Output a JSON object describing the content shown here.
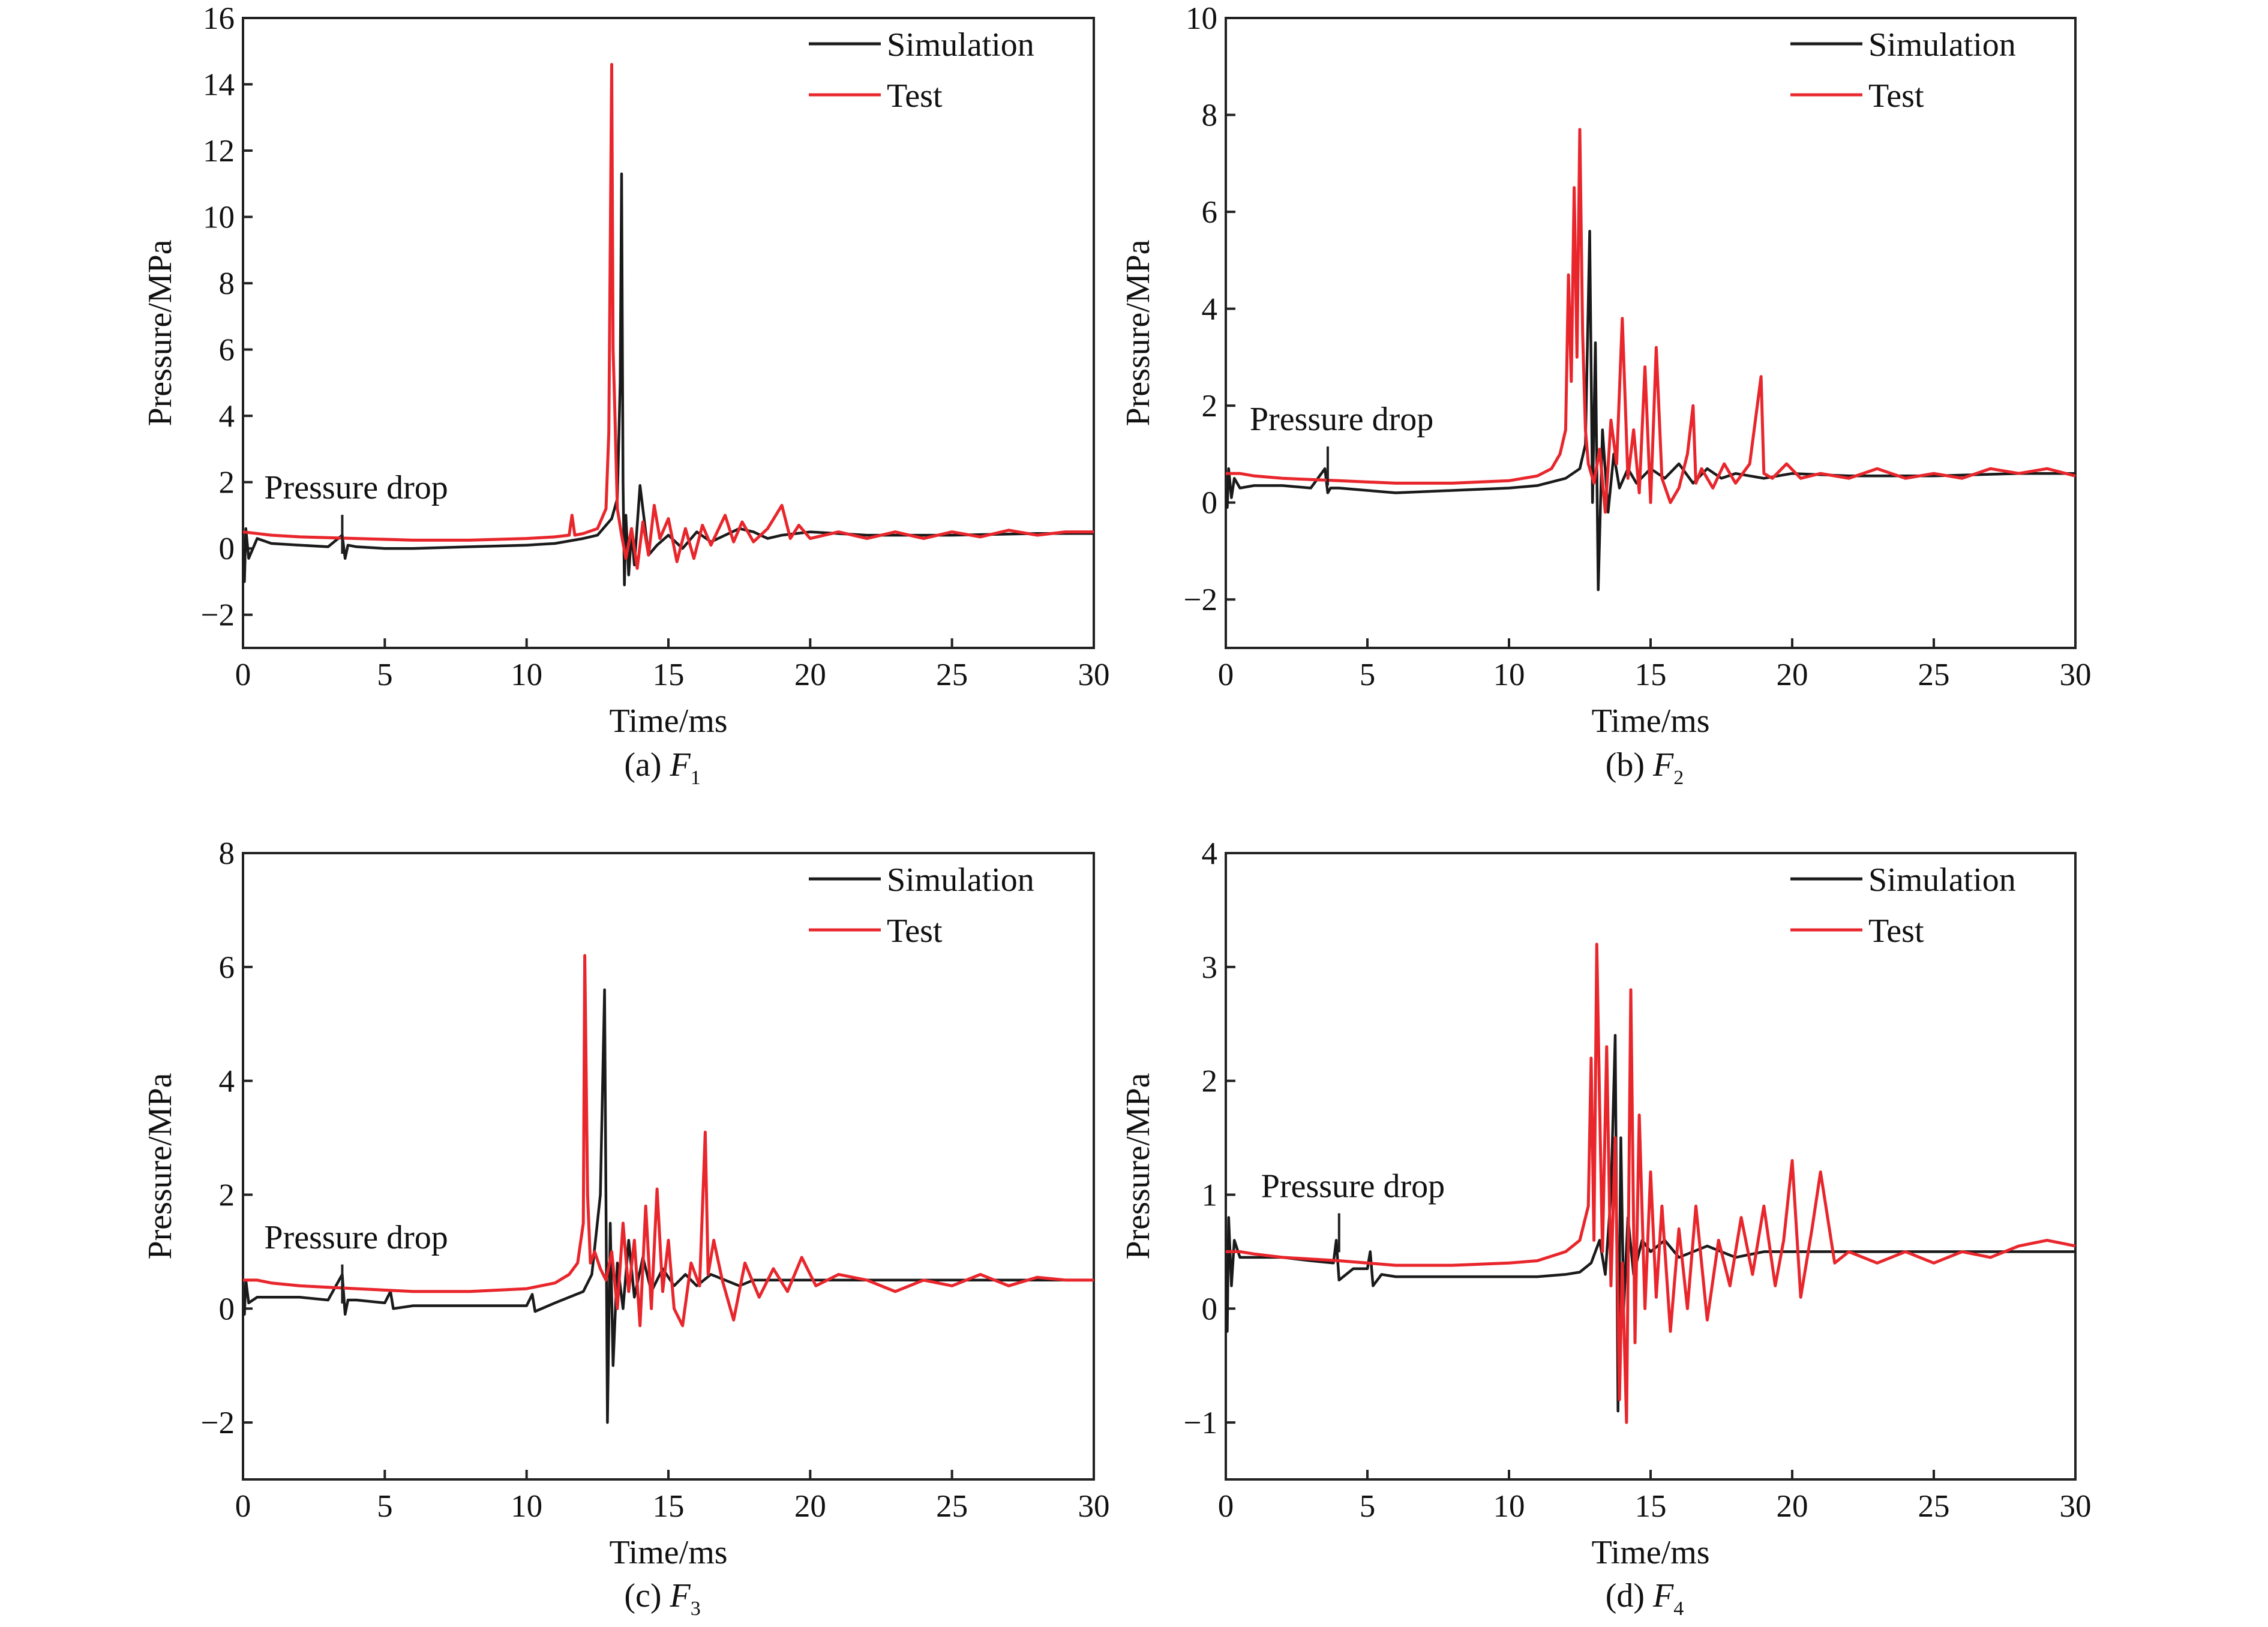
{
  "colors": {
    "simulation": "#1a1a1a",
    "test": "#e8262c",
    "test_highlight": "#f06aa8"
  },
  "chart_data": [
    {
      "type": "line",
      "caption_prefix": "(a) ",
      "caption_var": "F",
      "caption_sub": "1",
      "xlabel": "Time/ms",
      "ylabel": "Pressure/MPa",
      "xlim": [
        0,
        30
      ],
      "ylim": [
        -3,
        16
      ],
      "xticks": [
        0,
        5,
        10,
        15,
        20,
        25,
        30
      ],
      "yticks": [
        -2,
        0,
        2,
        4,
        6,
        8,
        10,
        12,
        14,
        16
      ],
      "annotation": {
        "text": "Pressure drop",
        "x": 3.5,
        "y": 0.2
      },
      "legend": [
        "Simulation",
        "Test"
      ],
      "series": [
        {
          "name": "Simulation",
          "x": [
            0,
            0.05,
            0.1,
            0.2,
            0.5,
            1,
            2,
            3,
            3.5,
            3.6,
            3.7,
            4,
            5,
            6,
            8,
            10,
            11,
            12,
            12.5,
            13,
            13.2,
            13.3,
            13.35,
            13.4,
            13.45,
            13.5,
            13.6,
            13.7,
            13.8,
            14,
            14.3,
            14.6,
            15,
            15.5,
            16,
            16.5,
            17,
            17.5,
            18,
            18.5,
            19,
            20,
            22,
            25,
            28,
            30
          ],
          "y": [
            0,
            -1,
            0.6,
            -0.3,
            0.3,
            0.15,
            0.1,
            0.05,
            0.4,
            -0.3,
            0.1,
            0.05,
            0.0,
            0.0,
            0.05,
            0.1,
            0.15,
            0.3,
            0.4,
            0.9,
            1.5,
            5.0,
            11.3,
            2.0,
            -1.1,
            1.0,
            -0.8,
            0.5,
            -0.5,
            1.9,
            -0.2,
            0.1,
            0.4,
            0.0,
            0.5,
            0.2,
            0.4,
            0.6,
            0.5,
            0.3,
            0.4,
            0.5,
            0.4,
            0.4,
            0.45,
            0.45
          ]
        },
        {
          "name": "Test",
          "x": [
            0,
            0.5,
            1,
            2,
            4,
            6,
            8,
            10,
            11,
            11.5,
            11.6,
            11.7,
            12,
            12.5,
            12.8,
            12.9,
            13.0,
            13.05,
            13.1,
            13.2,
            13.35,
            13.5,
            13.7,
            13.9,
            14.1,
            14.3,
            14.5,
            14.7,
            15.0,
            15.3,
            15.6,
            15.9,
            16.2,
            16.5,
            17.0,
            17.3,
            17.6,
            18.0,
            18.5,
            19.0,
            19.3,
            19.6,
            20.0,
            21,
            22,
            23,
            24,
            25,
            26,
            27,
            28,
            29,
            30
          ],
          "y": [
            0.5,
            0.45,
            0.4,
            0.35,
            0.3,
            0.25,
            0.25,
            0.3,
            0.35,
            0.4,
            1.0,
            0.4,
            0.45,
            0.6,
            1.2,
            3.5,
            14.6,
            6.0,
            4.5,
            1.2,
            0.4,
            -0.3,
            0.6,
            -0.6,
            0.8,
            -0.2,
            1.3,
            0.3,
            0.9,
            -0.4,
            0.6,
            -0.3,
            0.7,
            0.1,
            1.0,
            0.2,
            0.8,
            0.2,
            0.6,
            1.3,
            0.3,
            0.7,
            0.3,
            0.5,
            0.3,
            0.5,
            0.3,
            0.5,
            0.35,
            0.55,
            0.4,
            0.5,
            0.5
          ]
        }
      ]
    },
    {
      "type": "line",
      "caption_prefix": "(b) ",
      "caption_var": "F",
      "caption_sub": "2",
      "xlabel": "Time/ms",
      "ylabel": "Pressure/MPa",
      "xlim": [
        0,
        30
      ],
      "ylim": [
        -3,
        10
      ],
      "xticks": [
        0,
        5,
        10,
        15,
        20,
        25,
        30
      ],
      "yticks": [
        -2,
        0,
        2,
        4,
        6,
        8,
        10
      ],
      "annotation": {
        "text": "Pressure drop",
        "x": 3.6,
        "y": 0.6
      },
      "legend": [
        "Simulation",
        "Test"
      ],
      "series": [
        {
          "name": "Simulation",
          "x": [
            0,
            0.05,
            0.1,
            0.2,
            0.3,
            0.5,
            1,
            2,
            3,
            3.5,
            3.6,
            3.7,
            4,
            5,
            6,
            8,
            10,
            11,
            12,
            12.5,
            12.7,
            12.85,
            12.95,
            13.05,
            13.15,
            13.3,
            13.5,
            13.7,
            13.9,
            14.2,
            14.5,
            15,
            15.5,
            16,
            16.5,
            17,
            17.5,
            18,
            19,
            20,
            22,
            25,
            28,
            30
          ],
          "y": [
            0.3,
            -0.1,
            0.7,
            0.1,
            0.5,
            0.3,
            0.35,
            0.35,
            0.3,
            0.7,
            0.2,
            0.3,
            0.3,
            0.25,
            0.2,
            0.25,
            0.3,
            0.35,
            0.5,
            0.7,
            1.2,
            5.6,
            0.0,
            3.3,
            -1.8,
            1.5,
            -0.2,
            1.0,
            0.3,
            0.7,
            0.4,
            0.7,
            0.5,
            0.8,
            0.4,
            0.7,
            0.5,
            0.6,
            0.5,
            0.6,
            0.55,
            0.55,
            0.6,
            0.6
          ]
        },
        {
          "name": "Test",
          "x": [
            0,
            0.5,
            1,
            2,
            4,
            6,
            8,
            10,
            11,
            11.5,
            11.8,
            12.0,
            12.1,
            12.2,
            12.3,
            12.4,
            12.5,
            12.6,
            12.7,
            12.8,
            13.0,
            13.2,
            13.4,
            13.6,
            13.8,
            14.0,
            14.2,
            14.4,
            14.6,
            14.8,
            15.0,
            15.2,
            15.4,
            15.7,
            16.0,
            16.3,
            16.5,
            16.6,
            16.8,
            17.2,
            17.6,
            18.0,
            18.5,
            18.9,
            19.0,
            19.3,
            19.8,
            20.3,
            21,
            22,
            23,
            24,
            25,
            26,
            27,
            28,
            29,
            30
          ],
          "y": [
            0.6,
            0.6,
            0.55,
            0.5,
            0.45,
            0.4,
            0.4,
            0.45,
            0.55,
            0.7,
            1.0,
            1.5,
            4.7,
            2.5,
            6.5,
            3.0,
            7.7,
            3.5,
            1.5,
            0.8,
            0.4,
            1.1,
            -0.2,
            1.7,
            0.8,
            3.8,
            0.5,
            1.5,
            0.2,
            2.8,
            0.0,
            3.2,
            0.5,
            0.0,
            0.3,
            1.0,
            2.0,
            0.4,
            0.7,
            0.3,
            0.8,
            0.4,
            0.8,
            2.6,
            0.6,
            0.5,
            0.8,
            0.5,
            0.6,
            0.5,
            0.7,
            0.5,
            0.6,
            0.5,
            0.7,
            0.6,
            0.7,
            0.55
          ]
        }
      ]
    },
    {
      "type": "line",
      "caption_prefix": "(c) ",
      "caption_var": "F",
      "caption_sub": "3",
      "xlabel": "Time/ms",
      "ylabel": "Pressure/MPa",
      "xlim": [
        0,
        30
      ],
      "ylim": [
        -3,
        8
      ],
      "xticks": [
        0,
        5,
        10,
        15,
        20,
        25,
        30
      ],
      "yticks": [
        -2,
        0,
        2,
        4,
        6,
        8
      ],
      "annotation": {
        "text": "Pressure drop",
        "x": 3.5,
        "y": 0.3
      },
      "legend": [
        "Simulation",
        "Test"
      ],
      "series": [
        {
          "name": "Simulation",
          "x": [
            0,
            0.05,
            0.1,
            0.2,
            0.5,
            1,
            2,
            3,
            3.5,
            3.6,
            3.7,
            4,
            5,
            5.2,
            5.3,
            6,
            8,
            10,
            10.2,
            10.3,
            11,
            12,
            12.3,
            12.6,
            12.75,
            12.85,
            12.95,
            13.05,
            13.2,
            13.4,
            13.6,
            13.8,
            14.1,
            14.4,
            14.8,
            15.2,
            15.6,
            16,
            16.5,
            17,
            17.5,
            18,
            19,
            20,
            22,
            25,
            28,
            30
          ],
          "y": [
            0.1,
            -0.1,
            0.5,
            0.1,
            0.2,
            0.2,
            0.2,
            0.15,
            0.6,
            -0.1,
            0.15,
            0.15,
            0.1,
            0.3,
            0.0,
            0.05,
            0.05,
            0.05,
            0.25,
            -0.05,
            0.1,
            0.3,
            0.6,
            2.0,
            5.6,
            -2.0,
            1.5,
            -1.0,
            0.8,
            0.0,
            1.2,
            0.2,
            0.9,
            0.3,
            0.7,
            0.4,
            0.6,
            0.4,
            0.6,
            0.5,
            0.4,
            0.5,
            0.5,
            0.5,
            0.5,
            0.5,
            0.5,
            0.5
          ]
        },
        {
          "name": "Test",
          "x": [
            0,
            0.5,
            1,
            2,
            4,
            6,
            8,
            10,
            11,
            11.5,
            11.8,
            12.0,
            12.05,
            12.15,
            12.25,
            12.4,
            12.6,
            12.8,
            13.0,
            13.2,
            13.4,
            13.6,
            13.8,
            14.0,
            14.2,
            14.4,
            14.6,
            14.8,
            15.0,
            15.2,
            15.5,
            15.8,
            16.1,
            16.3,
            16.4,
            16.6,
            16.9,
            17.3,
            17.7,
            18.2,
            18.7,
            19.2,
            19.7,
            20.2,
            21,
            22,
            23,
            24,
            25,
            26,
            27,
            28,
            29,
            30
          ],
          "y": [
            0.5,
            0.5,
            0.45,
            0.4,
            0.35,
            0.3,
            0.3,
            0.35,
            0.45,
            0.6,
            0.8,
            1.5,
            6.2,
            2.0,
            0.8,
            1.0,
            0.7,
            0.5,
            1.0,
            0.0,
            1.5,
            0.3,
            1.2,
            -0.3,
            1.8,
            0.0,
            2.1,
            0.3,
            1.2,
            0.0,
            -0.3,
            0.8,
            0.4,
            3.1,
            0.6,
            1.2,
            0.5,
            -0.2,
            0.8,
            0.2,
            0.7,
            0.3,
            0.9,
            0.4,
            0.6,
            0.5,
            0.3,
            0.5,
            0.4,
            0.6,
            0.4,
            0.55,
            0.5,
            0.5
          ]
        }
      ]
    },
    {
      "type": "line",
      "caption_prefix": "(d) ",
      "caption_var": "F",
      "caption_sub": "4",
      "xlabel": "Time/ms",
      "ylabel": "Pressure/MPa",
      "xlim": [
        0,
        30
      ],
      "ylim": [
        -1.5,
        4
      ],
      "xticks": [
        0,
        5,
        10,
        15,
        20,
        25,
        30
      ],
      "yticks": [
        -1,
        0,
        1,
        2,
        3,
        4
      ],
      "annotation": {
        "text": "Pressure drop",
        "x": 4,
        "y": 0.6
      },
      "legend": [
        "Simulation",
        "Test"
      ],
      "series": [
        {
          "name": "Simulation",
          "x": [
            0,
            0.05,
            0.1,
            0.2,
            0.3,
            0.5,
            1,
            2,
            3,
            3.8,
            3.9,
            4.0,
            4.5,
            5.0,
            5.1,
            5.2,
            5.5,
            6,
            8,
            10,
            11,
            12,
            12.5,
            12.9,
            13.2,
            13.4,
            13.6,
            13.75,
            13.85,
            13.95,
            14.05,
            14.2,
            14.4,
            14.7,
            15,
            15.5,
            16,
            17,
            18,
            19,
            20,
            22,
            25,
            28,
            30
          ],
          "y": [
            0.4,
            -0.2,
            0.8,
            0.2,
            0.6,
            0.45,
            0.45,
            0.45,
            0.42,
            0.4,
            0.6,
            0.25,
            0.35,
            0.35,
            0.5,
            0.2,
            0.3,
            0.28,
            0.28,
            0.28,
            0.28,
            0.3,
            0.32,
            0.4,
            0.6,
            0.3,
            1.0,
            2.4,
            -0.9,
            1.5,
            0.0,
            0.8,
            0.3,
            0.6,
            0.5,
            0.6,
            0.45,
            0.55,
            0.45,
            0.5,
            0.5,
            0.5,
            0.5,
            0.5,
            0.5
          ]
        },
        {
          "name": "Test",
          "x": [
            0,
            0.5,
            1,
            2,
            4,
            6,
            8,
            10,
            11,
            12,
            12.5,
            12.8,
            12.9,
            13.0,
            13.1,
            13.2,
            13.3,
            13.45,
            13.6,
            13.75,
            13.9,
            14.0,
            14.15,
            14.3,
            14.45,
            14.6,
            14.8,
            15.0,
            15.2,
            15.4,
            15.7,
            16.0,
            16.3,
            16.6,
            17.0,
            17.4,
            17.8,
            18.2,
            18.6,
            19.0,
            19.4,
            19.7,
            20.0,
            20.3,
            20.7,
            21,
            21.5,
            22,
            23,
            24,
            25,
            26,
            27,
            28,
            29,
            30
          ],
          "y": [
            0.5,
            0.5,
            0.48,
            0.45,
            0.42,
            0.38,
            0.38,
            0.4,
            0.42,
            0.5,
            0.6,
            0.9,
            2.2,
            0.6,
            3.2,
            1.8,
            0.5,
            2.3,
            0.2,
            1.5,
            -0.8,
            0.4,
            -1.0,
            2.8,
            -0.3,
            1.7,
            0.0,
            1.2,
            0.1,
            0.9,
            -0.2,
            0.7,
            0.0,
            0.9,
            -0.1,
            0.6,
            0.2,
            0.8,
            0.3,
            0.9,
            0.2,
            0.6,
            1.3,
            0.1,
            0.7,
            1.2,
            0.4,
            0.5,
            0.4,
            0.5,
            0.4,
            0.5,
            0.45,
            0.55,
            0.6,
            0.55
          ]
        }
      ]
    }
  ]
}
